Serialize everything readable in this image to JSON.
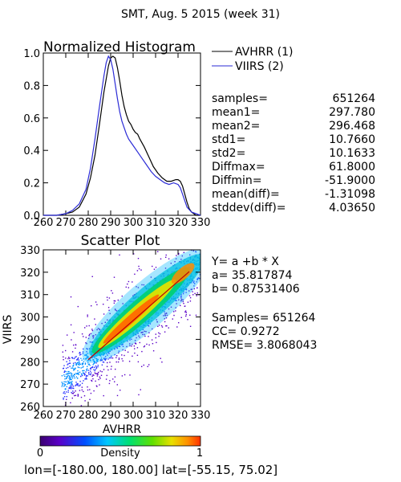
{
  "title": "SMT,  Aug. 5 2015 (week 31)",
  "colors": {
    "avhrr": "#000000",
    "viirs": "#2b2bd6",
    "fit_line": "#c00000"
  },
  "histogram": {
    "title": "Normalized Histogram",
    "legend": [
      {
        "label": "AVHRR (1)",
        "color": "#000000"
      },
      {
        "label": "VIIRS (2)",
        "color": "#2b2bd6"
      }
    ],
    "yticks": [
      "0.0",
      "0.2",
      "0.4",
      "0.6",
      "0.8",
      "1.0"
    ],
    "xticks": [
      "260",
      "270",
      "280",
      "290",
      "300",
      "310",
      "320",
      "330"
    ]
  },
  "stats": [
    {
      "label": "samples=",
      "value": "651264"
    },
    {
      "label": "mean1=",
      "value": "297.780"
    },
    {
      "label": "mean2=",
      "value": "296.468"
    },
    {
      "label": "std1=",
      "value": "10.7660"
    },
    {
      "label": "std2=",
      "value": "10.1633"
    },
    {
      "label": "Diffmax=",
      "value": "61.8000"
    },
    {
      "label": "Diffmin=",
      "value": "-51.9000"
    },
    {
      "label": "mean(diff)=",
      "value": "-1.31098"
    },
    {
      "label": "stddev(diff)=",
      "value": "4.03650"
    }
  ],
  "scatter": {
    "title": "Scatter Plot",
    "xlabel": "AVHRR",
    "ylabel": "VIIRS",
    "xticks": [
      "260",
      "270",
      "280",
      "290",
      "300",
      "310",
      "320",
      "330"
    ],
    "yticks": [
      "260",
      "270",
      "280",
      "290",
      "300",
      "310",
      "320",
      "330"
    ],
    "regression": {
      "equation": "Y= a +b * X",
      "a_text": "a= 35.817874",
      "b_text": "b= 0.87531406",
      "samples_text": "Samples= 651264",
      "cc_text": "CC=  0.9272",
      "rmse_text": "RMSE= 3.8068043"
    }
  },
  "colorbar": {
    "label": "Density",
    "min_label": "0",
    "max_label": "1"
  },
  "footer": "lon=[-180.00, 180.00] lat=[-55.15, 75.02]",
  "chart_data": [
    {
      "type": "line",
      "title": "Normalized Histogram",
      "xlabel": "",
      "ylabel": "",
      "xlim": [
        260,
        330
      ],
      "ylim": [
        0,
        1
      ],
      "legend_position": "top-right (outside plot)",
      "grid": false,
      "series": [
        {
          "name": "AVHRR (1)",
          "color": "#000000",
          "x": [
            260,
            266,
            270,
            273,
            276,
            279,
            281,
            283,
            285,
            287,
            289,
            290,
            291,
            292,
            293,
            294,
            295,
            296,
            297,
            298,
            299,
            300,
            301,
            302,
            303,
            305,
            307,
            309,
            311,
            313,
            315,
            317,
            319,
            320,
            321,
            322,
            323,
            324,
            325,
            326,
            327,
            328,
            330
          ],
          "y": [
            0.0,
            0.0,
            0.01,
            0.02,
            0.05,
            0.13,
            0.23,
            0.37,
            0.56,
            0.76,
            0.92,
            0.97,
            0.98,
            0.97,
            0.91,
            0.83,
            0.74,
            0.67,
            0.62,
            0.58,
            0.56,
            0.53,
            0.51,
            0.5,
            0.47,
            0.42,
            0.36,
            0.3,
            0.26,
            0.23,
            0.21,
            0.21,
            0.22,
            0.22,
            0.21,
            0.18,
            0.13,
            0.08,
            0.04,
            0.02,
            0.01,
            0.0,
            0.0
          ]
        },
        {
          "name": "VIIRS (2)",
          "color": "#2b2bd6",
          "x": [
            260,
            266,
            270,
            273,
            276,
            279,
            281,
            283,
            285,
            287,
            288,
            289,
            290,
            291,
            292,
            293,
            294,
            295,
            296,
            297,
            298,
            299,
            300,
            302,
            304,
            306,
            308,
            310,
            312,
            314,
            316,
            318,
            320,
            321,
            322,
            323,
            324,
            326,
            330
          ],
          "y": [
            0.0,
            0.0,
            0.01,
            0.03,
            0.07,
            0.16,
            0.29,
            0.47,
            0.67,
            0.86,
            0.94,
            0.98,
            0.96,
            0.9,
            0.81,
            0.72,
            0.64,
            0.58,
            0.54,
            0.5,
            0.47,
            0.45,
            0.43,
            0.39,
            0.35,
            0.31,
            0.27,
            0.24,
            0.22,
            0.2,
            0.19,
            0.2,
            0.19,
            0.17,
            0.13,
            0.09,
            0.05,
            0.02,
            0.0
          ]
        }
      ]
    },
    {
      "type": "heatmap",
      "title": "Scatter Plot",
      "xlabel": "AVHRR",
      "ylabel": "VIIRS",
      "xlim": [
        260,
        330
      ],
      "ylim": [
        260,
        330
      ],
      "grid": false,
      "colorbar": {
        "label": "Density",
        "range": [
          0,
          1
        ],
        "colormap": "rainbow (purple-blue-cyan-green-yellow-orange)"
      },
      "regression": {
        "a": 35.817874,
        "b": 0.87531406,
        "x_range": [
          280,
          325
        ]
      },
      "samples": 651264,
      "cc": 0.9272,
      "rmse": 3.8068043
    }
  ]
}
